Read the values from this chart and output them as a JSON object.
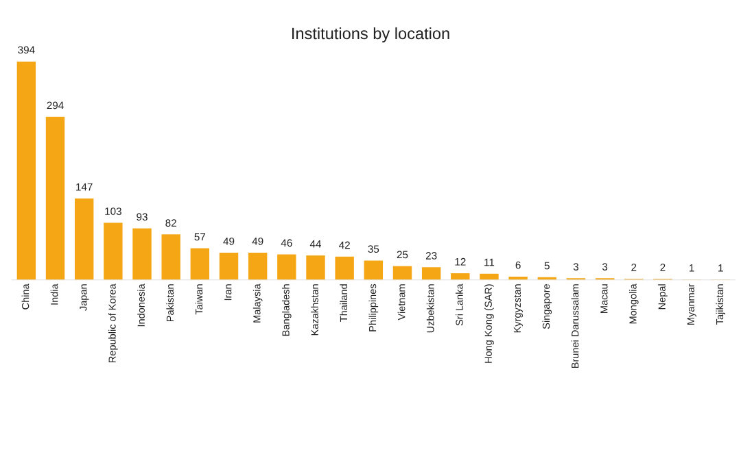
{
  "chart_data": {
    "type": "bar",
    "title": "Institutions by location",
    "categories": [
      "China",
      "India",
      "Japan",
      "Republic of Korea",
      "Indonesia",
      "Pakistan",
      "Taiwan",
      "Iran",
      "Malaysia",
      "Bangladesh",
      "Kazakhstan",
      "Thailand",
      "Philippines",
      "Vietnam",
      "Uzbekistan",
      "Sri Lanka",
      "Hong Kong (SAR)",
      "Kyrgyzstan",
      "Singapore",
      "Brunei Darussalam",
      "Macau",
      "Mongolia",
      "Nepal",
      "Myanmar",
      "Tajikistan"
    ],
    "values": [
      394,
      294,
      147,
      103,
      93,
      82,
      57,
      49,
      49,
      46,
      44,
      42,
      35,
      25,
      23,
      12,
      11,
      6,
      5,
      3,
      3,
      2,
      2,
      1,
      1
    ],
    "color": "#f5a614",
    "data_labels": true,
    "legend": false
  }
}
